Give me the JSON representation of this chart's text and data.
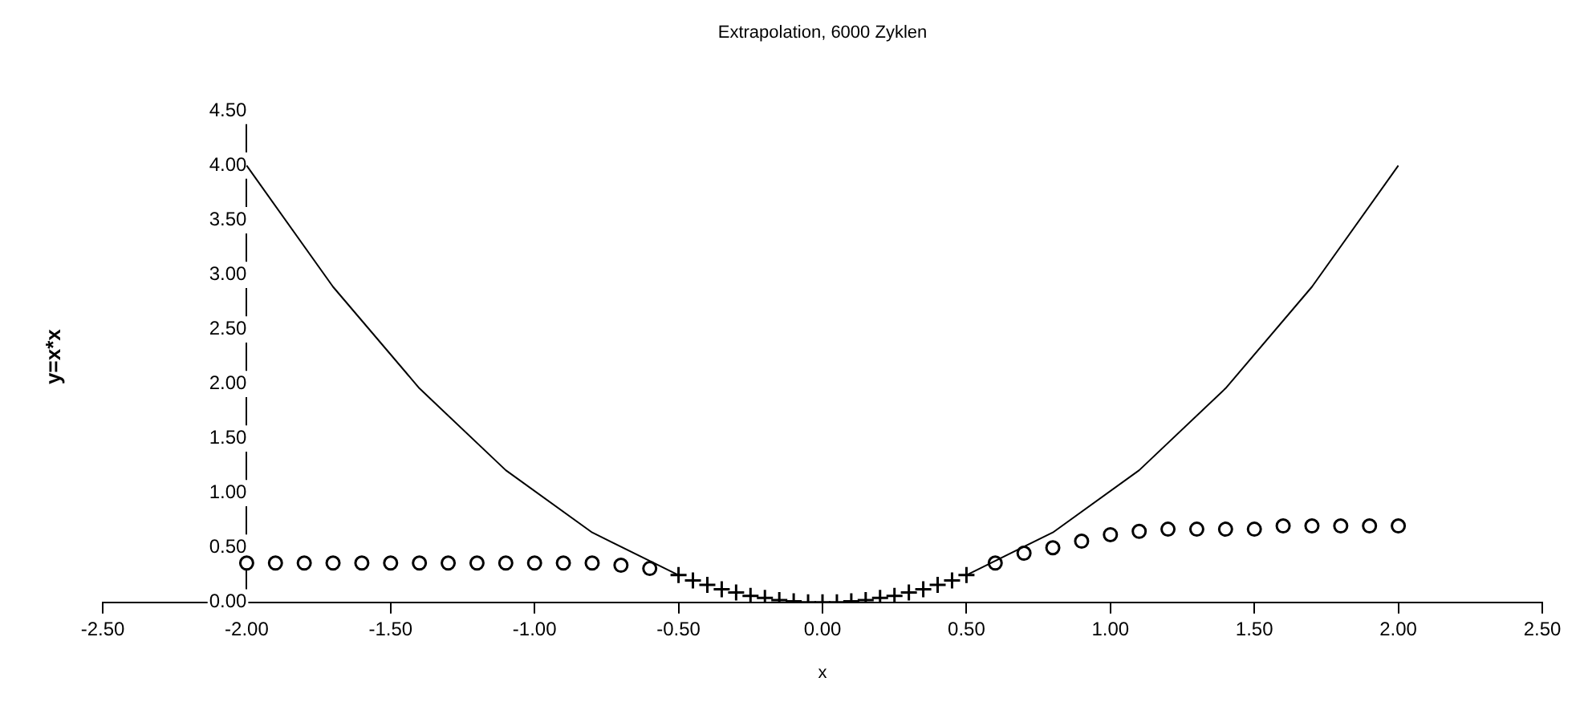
{
  "chart_data": {
    "type": "scatter",
    "title": "Extrapolation, 6000 Zyklen",
    "xlabel": "x",
    "ylabel": "y=x*x",
    "xlim": [
      -2.5,
      2.5
    ],
    "ylim": [
      0,
      4.5
    ],
    "xticks": [
      {
        "value": -2.5,
        "label": "-2.50"
      },
      {
        "value": -2,
        "label": "-2.00"
      },
      {
        "value": -1.5,
        "label": "-1.50"
      },
      {
        "value": -1,
        "label": "-1.00"
      },
      {
        "value": -0.5,
        "label": "-0.50"
      },
      {
        "value": 0,
        "label": "0.00"
      },
      {
        "value": 0.5,
        "label": "0.50"
      },
      {
        "value": 1,
        "label": "1.00"
      },
      {
        "value": 1.5,
        "label": "1.50"
      },
      {
        "value": 2,
        "label": "2.00"
      },
      {
        "value": 2.5,
        "label": "2.50"
      }
    ],
    "yticks": [
      {
        "value": 0,
        "label": "0.00"
      },
      {
        "value": 0.5,
        "label": "0.50"
      },
      {
        "value": 1,
        "label": "1.00"
      },
      {
        "value": 1.5,
        "label": "1.50"
      },
      {
        "value": 2,
        "label": "2.00"
      },
      {
        "value": 2.5,
        "label": "2.50"
      },
      {
        "value": 3,
        "label": "3.00"
      },
      {
        "value": 3.5,
        "label": "3.50"
      },
      {
        "value": 4,
        "label": "4.00"
      },
      {
        "value": 4.5,
        "label": "4.50"
      }
    ],
    "grid": false,
    "series": [
      {
        "type": "line",
        "marker": "none",
        "color": "#000000",
        "x": [
          -2,
          -1.7,
          -1.4,
          -1.1,
          -0.8,
          -0.5
        ],
        "values": [
          4,
          2.89,
          1.96,
          1.21,
          0.64,
          0.25
        ]
      },
      {
        "type": "line",
        "marker": "none",
        "color": "#000000",
        "x": [
          0.5,
          0.8,
          1.1,
          1.4,
          1.7,
          2
        ],
        "values": [
          0.25,
          0.64,
          1.21,
          1.96,
          2.89,
          4
        ]
      },
      {
        "type": "scatter",
        "marker": "circle",
        "color": "#000000",
        "x": [
          -2,
          -1.9,
          -1.8,
          -1.7,
          -1.6,
          -1.5,
          -1.4,
          -1.3,
          -1.2,
          -1.1,
          -1,
          -0.9,
          -0.8,
          -0.7,
          -0.6
        ],
        "values": [
          0.36,
          0.36,
          0.36,
          0.36,
          0.36,
          0.36,
          0.36,
          0.36,
          0.36,
          0.36,
          0.36,
          0.36,
          0.36,
          0.34,
          0.31
        ]
      },
      {
        "type": "scatter",
        "marker": "cross",
        "color": "#000000",
        "x": [
          -0.5,
          -0.45,
          -0.4,
          -0.35,
          -0.3,
          -0.25,
          -0.2,
          -0.15,
          -0.1,
          -0.05,
          0,
          0.05,
          0.1,
          0.15,
          0.2,
          0.25,
          0.3,
          0.35,
          0.4,
          0.45,
          0.5
        ],
        "values": [
          0.25,
          0.2,
          0.16,
          0.12,
          0.09,
          0.06,
          0.04,
          0.02,
          0.01,
          0,
          0,
          0,
          0.01,
          0.02,
          0.04,
          0.06,
          0.09,
          0.12,
          0.16,
          0.2,
          0.25
        ]
      },
      {
        "type": "scatter",
        "marker": "circle",
        "color": "#000000",
        "x": [
          0.6,
          0.7,
          0.8,
          0.9,
          1,
          1.1,
          1.2,
          1.3,
          1.4,
          1.5,
          1.6,
          1.7,
          1.8,
          1.9,
          2
        ],
        "values": [
          0.36,
          0.45,
          0.5,
          0.56,
          0.62,
          0.65,
          0.67,
          0.67,
          0.67,
          0.67,
          0.7,
          0.7,
          0.7,
          0.7,
          0.7
        ]
      }
    ]
  }
}
